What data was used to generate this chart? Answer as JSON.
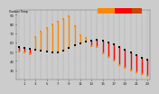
{
  "background_color": "#cccccc",
  "plot_bg_color": "#cccccc",
  "ylim": [
    20,
    95
  ],
  "xlim": [
    -0.5,
    23.5
  ],
  "yticks": [
    30,
    40,
    50,
    60,
    70,
    80,
    90
  ],
  "ytick_labels": [
    "30",
    "40",
    "50",
    "60",
    "70",
    "80",
    "90"
  ],
  "xtick_positions": [
    1,
    3,
    5,
    7,
    9,
    11,
    13,
    15,
    17,
    19,
    21,
    23
  ],
  "grid_color": "#888888",
  "temp_color": "#000000",
  "thsw_orange": "#ff8800",
  "thsw_red": "#ff0000",
  "legend_orange_color": "#ff8800",
  "legend_red_color": "#ff0000",
  "temp_data": [
    [
      0,
      55
    ],
    [
      1,
      54
    ],
    [
      2,
      53
    ],
    [
      3,
      52
    ],
    [
      4,
      51
    ],
    [
      5,
      50
    ],
    [
      6,
      49
    ],
    [
      7,
      49
    ],
    [
      8,
      51
    ],
    [
      9,
      54
    ],
    [
      10,
      57
    ],
    [
      11,
      59
    ],
    [
      12,
      61
    ],
    [
      13,
      62
    ],
    [
      14,
      63
    ],
    [
      15,
      62
    ],
    [
      16,
      60
    ],
    [
      17,
      58
    ],
    [
      18,
      55
    ],
    [
      19,
      52
    ],
    [
      20,
      49
    ],
    [
      21,
      46
    ],
    [
      22,
      43
    ],
    [
      23,
      41
    ]
  ],
  "thsw_data": [
    [
      0,
      50
    ],
    [
      1,
      49
    ],
    [
      2,
      47
    ],
    [
      3,
      66
    ],
    [
      4,
      72
    ],
    [
      5,
      76
    ],
    [
      6,
      80
    ],
    [
      7,
      82
    ],
    [
      8,
      85
    ],
    [
      9,
      88
    ],
    [
      10,
      78
    ],
    [
      11,
      68
    ],
    [
      12,
      65
    ],
    [
      13,
      56
    ],
    [
      14,
      55
    ],
    [
      15,
      48
    ],
    [
      16,
      44
    ],
    [
      17,
      40
    ],
    [
      18,
      36
    ],
    [
      19,
      33
    ],
    [
      20,
      30
    ],
    [
      21,
      28
    ],
    [
      22,
      26
    ],
    [
      23,
      24
    ]
  ],
  "segment_data": [
    [
      0,
      55,
      50
    ],
    [
      1,
      54,
      49
    ],
    [
      2,
      53,
      47
    ],
    [
      3,
      52,
      66
    ],
    [
      4,
      51,
      72
    ],
    [
      5,
      50,
      76
    ],
    [
      6,
      49,
      80
    ],
    [
      7,
      49,
      82
    ],
    [
      8,
      51,
      85
    ],
    [
      9,
      54,
      88
    ],
    [
      10,
      57,
      78
    ],
    [
      11,
      59,
      68
    ],
    [
      12,
      61,
      65
    ],
    [
      13,
      62,
      56
    ],
    [
      14,
      63,
      55
    ],
    [
      15,
      62,
      48
    ],
    [
      16,
      60,
      44
    ],
    [
      17,
      58,
      40
    ],
    [
      18,
      55,
      36
    ],
    [
      19,
      52,
      33
    ],
    [
      20,
      49,
      30
    ],
    [
      21,
      46,
      28
    ],
    [
      22,
      43,
      26
    ],
    [
      23,
      41,
      24
    ]
  ]
}
